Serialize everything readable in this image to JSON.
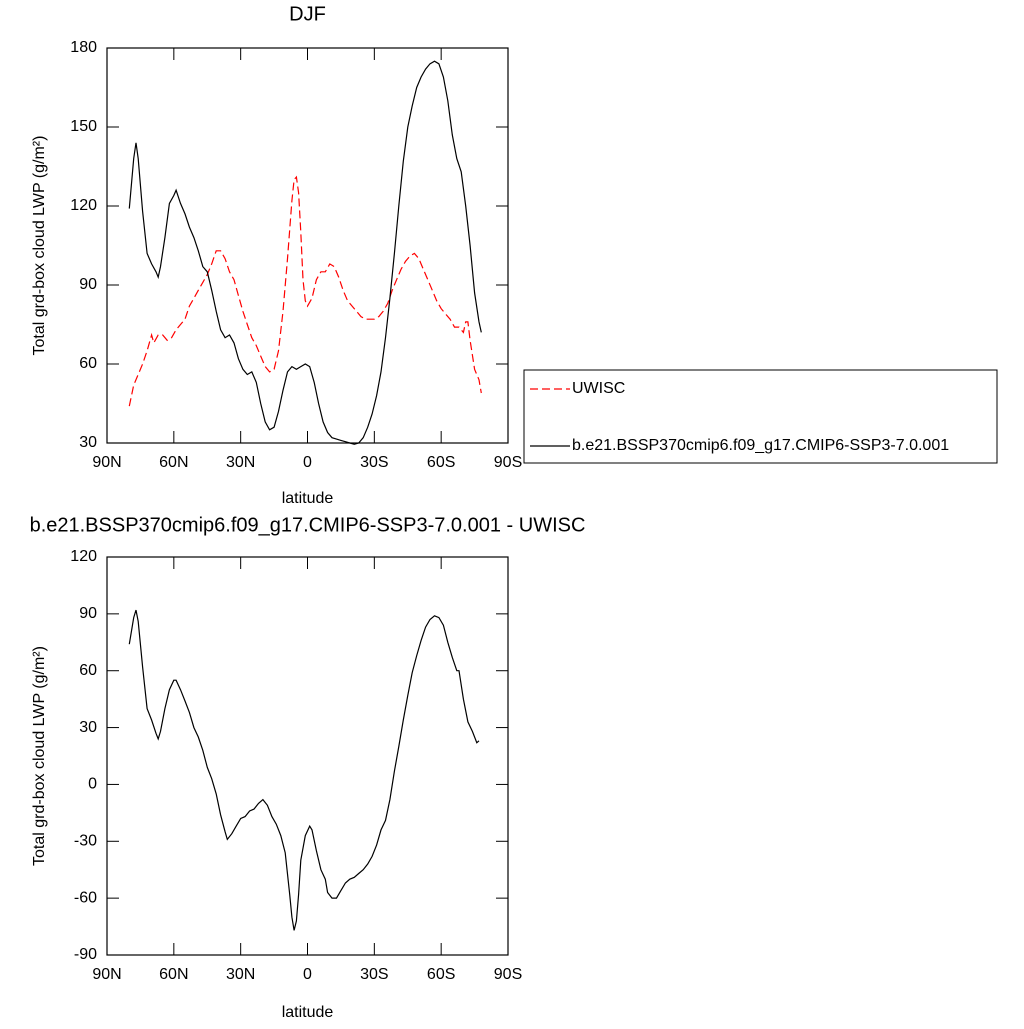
{
  "chart_data": [
    {
      "type": "line",
      "title": "DJF",
      "xlabel": "latitude",
      "ylabel": "Total grd-box cloud LWP (g/m²)",
      "xlim": [
        90,
        -90
      ],
      "xticks": [
        {
          "value": 90,
          "label": "90N"
        },
        {
          "value": 60,
          "label": "60N"
        },
        {
          "value": 30,
          "label": "30N"
        },
        0,
        {
          "value": -30,
          "label": "30S"
        },
        {
          "value": -60,
          "label": "60S"
        },
        {
          "value": -90,
          "label": "90S"
        }
      ],
      "ylim": [
        30,
        180
      ],
      "yticks": [
        30,
        60,
        90,
        120,
        150,
        180
      ],
      "legend": "right",
      "series": [
        {
          "name": "UWISC",
          "color": "#ff0000",
          "line_style": "dashed",
          "x": [
            80,
            79,
            78,
            76,
            74,
            72,
            70,
            69,
            67,
            65,
            63,
            61,
            59,
            57,
            55,
            53,
            51,
            49,
            47,
            45,
            43,
            41,
            39,
            37,
            35,
            33,
            31,
            29,
            27,
            25,
            23,
            21,
            19,
            17,
            15,
            13,
            11,
            9,
            7,
            6,
            5,
            4,
            3,
            2,
            1,
            0,
            -2,
            -4,
            -6,
            -8,
            -10,
            -12,
            -14,
            -16,
            -18,
            -20,
            -22,
            -24,
            -26,
            -28,
            -30,
            -32,
            -34,
            -36,
            -38,
            -40,
            -42,
            -44,
            -46,
            -48,
            -50,
            -52,
            -54,
            -56,
            -58,
            -60,
            -62,
            -64,
            -66,
            -68,
            -70,
            -71,
            -72,
            -73,
            -75,
            -77,
            -78
          ],
          "values": [
            44,
            48,
            52,
            56,
            60,
            65,
            71,
            68,
            71,
            71,
            69,
            70,
            73,
            75,
            77,
            82,
            85,
            88,
            91,
            94,
            98,
            103,
            103,
            100,
            95,
            92,
            86,
            80,
            75,
            70,
            67,
            63,
            59,
            57,
            58,
            65,
            80,
            100,
            122,
            130,
            131,
            125,
            110,
            92,
            84,
            82,
            85,
            92,
            95,
            95,
            98,
            97,
            93,
            88,
            84,
            82,
            80,
            78,
            77,
            77,
            77,
            78,
            80,
            83,
            88,
            92,
            96,
            99,
            101,
            102,
            100,
            96,
            92,
            88,
            84,
            81,
            79,
            77,
            74,
            74,
            72,
            76,
            76,
            69,
            58,
            54,
            49
          ]
        },
        {
          "name": "b.e21.BSSP370cmip6.f09_g17.CMIP6-SSP3-7.0.001",
          "color": "#000000",
          "line_style": "solid",
          "x": [
            80,
            78,
            77,
            76,
            74,
            72,
            70,
            68,
            67,
            66,
            64,
            62,
            60,
            59,
            57,
            55,
            53,
            51,
            49,
            47,
            45,
            43,
            41,
            39,
            37,
            35,
            33,
            31,
            29,
            27,
            25,
            23,
            21,
            19,
            17,
            15,
            13,
            11,
            9,
            7,
            5,
            3,
            1,
            -1,
            -3,
            -5,
            -7,
            -9,
            -11,
            -13,
            -15,
            -17,
            -19,
            -21,
            -23,
            -25,
            -27,
            -29,
            -31,
            -33,
            -35,
            -37,
            -39,
            -41,
            -43,
            -45,
            -47,
            -49,
            -51,
            -53,
            -55,
            -57,
            -59,
            -61,
            -63,
            -65,
            -67,
            -69,
            -71,
            -73,
            -75,
            -77,
            -78
          ],
          "values": [
            119,
            138,
            144,
            138,
            118,
            102,
            98,
            95,
            93,
            97,
            108,
            121,
            124,
            126,
            121,
            117,
            112,
            108,
            103,
            97,
            95,
            88,
            80,
            73,
            70,
            71,
            68,
            62,
            58,
            56,
            57,
            53,
            45,
            38,
            35,
            36,
            42,
            50,
            57,
            59,
            58,
            59,
            60,
            59,
            53,
            45,
            38,
            34,
            32,
            31.5,
            31,
            30.5,
            30,
            29.5,
            30,
            32,
            36,
            41,
            48,
            57,
            70,
            85,
            102,
            120,
            137,
            150,
            158,
            165,
            169,
            172,
            174,
            175,
            174,
            169,
            160,
            147,
            138,
            133,
            120,
            105,
            87,
            76,
            72
          ]
        }
      ]
    },
    {
      "type": "line",
      "title": "b.e21.BSSP370cmip6.f09_g17.CMIP6-SSP3-7.0.001 - UWISC",
      "xlabel": "latitude",
      "ylabel": "Total grd-box cloud LWP (g/m²)",
      "xlim": [
        90,
        -90
      ],
      "xticks": [
        {
          "value": 90,
          "label": "90N"
        },
        {
          "value": 60,
          "label": "60N"
        },
        {
          "value": 30,
          "label": "30N"
        },
        0,
        {
          "value": -30,
          "label": "30S"
        },
        {
          "value": -60,
          "label": "60S"
        },
        {
          "value": -90,
          "label": "90S"
        }
      ],
      "ylim": [
        -90,
        120
      ],
      "yticks": [
        -90,
        -60,
        -30,
        0,
        30,
        60,
        90,
        120
      ],
      "series": [
        {
          "color": "#000000",
          "line_style": "solid",
          "x": [
            80,
            78,
            77,
            76,
            74,
            72,
            70,
            68,
            67,
            66,
            64,
            62,
            60,
            59,
            57,
            55,
            53,
            51,
            49,
            47,
            45,
            43,
            41,
            39,
            37,
            36,
            34,
            32,
            30,
            28,
            26,
            24,
            22,
            20,
            18,
            16,
            14,
            12,
            10,
            8,
            7,
            6,
            5,
            4,
            3,
            1,
            -1,
            -2,
            -4,
            -6,
            -8,
            -9,
            -11,
            -13,
            -15,
            -17,
            -19,
            -21,
            -23,
            -25,
            -27,
            -29,
            -31,
            -33,
            -35,
            -37,
            -39,
            -41,
            -43,
            -45,
            -47,
            -49,
            -51,
            -53,
            -55,
            -57,
            -59,
            -61,
            -63,
            -65,
            -67,
            -68,
            -70,
            -72,
            -74,
            -76,
            -77
          ],
          "values": [
            74,
            88,
            92,
            86,
            62,
            40,
            34,
            27,
            24,
            28,
            40,
            50,
            55,
            55,
            50,
            44,
            38,
            30,
            25,
            18,
            9,
            3,
            -5,
            -16,
            -25,
            -29,
            -26,
            -22,
            -18,
            -17,
            -14,
            -13,
            -10,
            -8,
            -11,
            -17,
            -21,
            -27,
            -36,
            -58,
            -70,
            -77,
            -72,
            -58,
            -40,
            -27,
            -22,
            -24,
            -35,
            -45,
            -50,
            -57,
            -60,
            -60,
            -56,
            -52,
            -50,
            -49,
            -47,
            -45,
            -42,
            -38,
            -32,
            -24,
            -19,
            -8,
            7,
            20,
            34,
            47,
            59,
            68,
            76,
            83,
            87,
            89,
            88,
            84,
            75,
            67,
            60,
            60,
            45,
            33,
            28,
            22,
            23
          ]
        }
      ]
    }
  ]
}
